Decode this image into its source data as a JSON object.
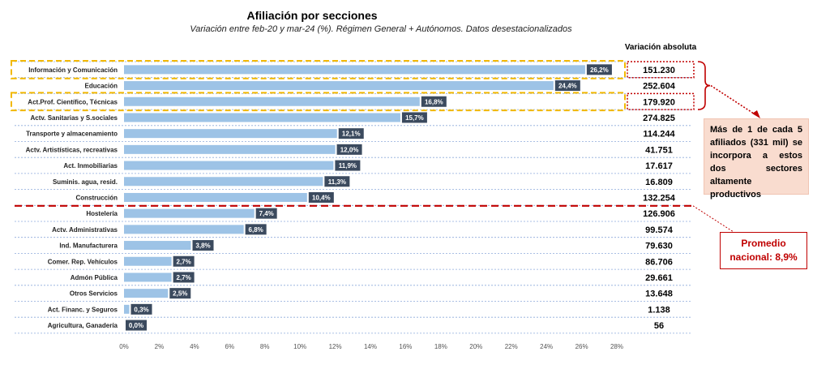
{
  "chart_data": {
    "type": "bar",
    "orientation": "horizontal",
    "title": "Afiliación por secciones",
    "subtitle": "Variación entre feb-20 y mar-24 (%). Régimen General + Autónomos. Datos desestacionalizados",
    "abs_header": "Variación absoluta",
    "categories": [
      "Información y Comunicación",
      "Educación",
      "Act.Prof. Científico, Técnicas",
      "Actv. Sanitarias y S.sociales",
      "Transporte y almacenamiento",
      "Actv. Artistísticas, recreativas",
      "Act. Inmobiliarias",
      "Suminis. agua, resid.",
      "Construcción",
      "Hostelería",
      "Actv. Administrativas",
      "Ind. Manufacturera",
      "Comer. Rep. Vehículos",
      "Admón Pública",
      "Otros Servicios",
      "Act. Financ. y Seguros",
      "Agricultura, Ganadería"
    ],
    "values": [
      26.2,
      24.4,
      16.8,
      15.7,
      12.1,
      12.0,
      11.9,
      11.3,
      10.4,
      7.4,
      6.8,
      3.8,
      2.7,
      2.7,
      2.5,
      0.3,
      0.0
    ],
    "value_labels": [
      "26,2%",
      "24,4%",
      "16,8%",
      "15,7%",
      "12,1%",
      "12,0%",
      "11,9%",
      "11,3%",
      "10,4%",
      "7,4%",
      "6,8%",
      "3,8%",
      "2,7%",
      "2,7%",
      "2,5%",
      "0,3%",
      "0,0%"
    ],
    "abs_values": [
      "151.230",
      "252.604",
      "179.920",
      "274.825",
      "114.244",
      "41.751",
      "17.617",
      "16.809",
      "132.254",
      "126.906",
      "99.574",
      "79.630",
      "86.706",
      "29.661",
      "13.648",
      "1.138",
      "56"
    ],
    "xlim": [
      0,
      28
    ],
    "x_ticks": [
      "0%",
      "2%",
      "4%",
      "6%",
      "8%",
      "10%",
      "12%",
      "14%",
      "16%",
      "18%",
      "20%",
      "22%",
      "24%",
      "26%",
      "28%"
    ],
    "highlighted": [
      "Información y Comunicación",
      "Act.Prof. Científico, Técnicas"
    ],
    "average": 8.9,
    "annotation": "Más de 1 de cada 5 afiliados (331 mil) se incorpora a estos dos sectores altamente productivos",
    "average_label": "Promedio nacional: 8,9%",
    "colors": {
      "bar": "#9dc3e6",
      "label_bg": "#3b4a5e",
      "highlight": "#f2b800",
      "average_line": "#c00000",
      "note_bg": "#f9dccf",
      "gridline": "#8eaadb"
    }
  }
}
